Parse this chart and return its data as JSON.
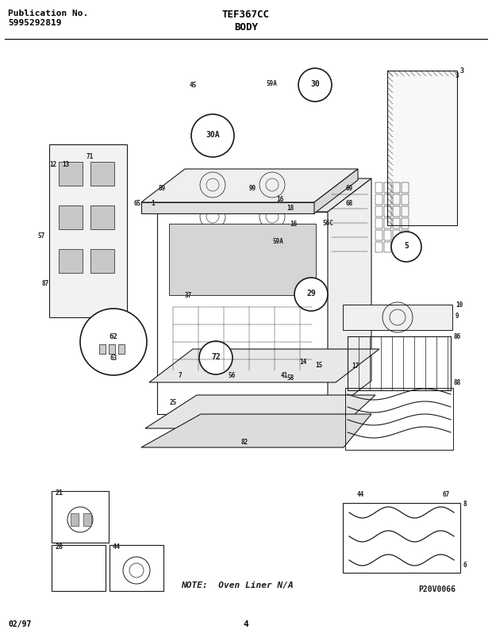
{
  "title_model": "TEF367CC",
  "title_section": "BODY",
  "pub_label": "Publication No.",
  "pub_number": "5995292819",
  "date_code": "02/97",
  "page_number": "4",
  "fig_label": "P20V0066",
  "note_text": "NOTE:  Oven Liner N/A",
  "bg_color": "#ffffff",
  "header_line_color": "#000000",
  "text_color": "#000000",
  "header_fontsize": 8,
  "body_fontsize": 7,
  "fig_width": 6.2,
  "fig_height": 8.04,
  "dpi": 100
}
